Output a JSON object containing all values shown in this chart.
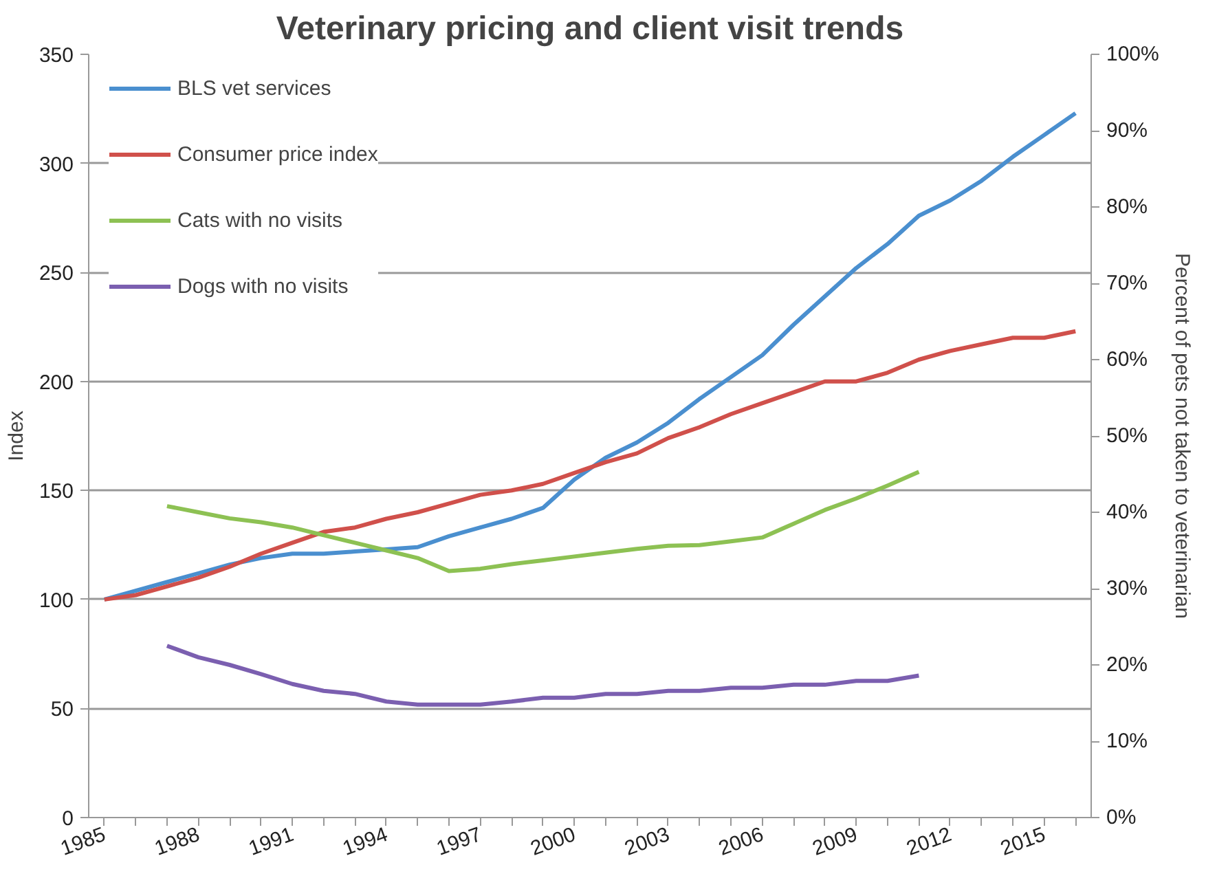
{
  "chart_data": {
    "type": "line",
    "title": "Veterinary pricing and client visit trends",
    "ylabel": "Index",
    "y2label": "Percent of pets not taken to veterinarian",
    "xlim": [
      1984.5,
      2016.5
    ],
    "xticks": [
      {
        "value": 1985,
        "label": "1985"
      },
      {
        "value": 1986,
        "label": null
      },
      {
        "value": 1987,
        "label": null
      },
      {
        "value": 1988,
        "label": "1988"
      },
      {
        "value": 1989,
        "label": null
      },
      {
        "value": 1990,
        "label": null
      },
      {
        "value": 1991,
        "label": "1991"
      },
      {
        "value": 1992,
        "label": null
      },
      {
        "value": 1993,
        "label": null
      },
      {
        "value": 1994,
        "label": "1994"
      },
      {
        "value": 1995,
        "label": null
      },
      {
        "value": 1996,
        "label": null
      },
      {
        "value": 1997,
        "label": "1997"
      },
      {
        "value": 1998,
        "label": null
      },
      {
        "value": 1999,
        "label": null
      },
      {
        "value": 2000,
        "label": "2000"
      },
      {
        "value": 2001,
        "label": null
      },
      {
        "value": 2002,
        "label": null
      },
      {
        "value": 2003,
        "label": "2003"
      },
      {
        "value": 2004,
        "label": null
      },
      {
        "value": 2005,
        "label": null
      },
      {
        "value": 2006,
        "label": "2006"
      },
      {
        "value": 2007,
        "label": null
      },
      {
        "value": 2008,
        "label": null
      },
      {
        "value": 2009,
        "label": "2009"
      },
      {
        "value": 2010,
        "label": null
      },
      {
        "value": 2011,
        "label": null
      },
      {
        "value": 2012,
        "label": "2012"
      },
      {
        "value": 2013,
        "label": null
      },
      {
        "value": 2014,
        "label": null
      },
      {
        "value": 2015,
        "label": "2015"
      },
      {
        "value": 2016,
        "label": null
      }
    ],
    "ylim": [
      0,
      350
    ],
    "yticks": [
      0,
      50,
      100,
      150,
      200,
      250,
      300,
      350
    ],
    "y2lim": [
      0,
      100
    ],
    "y2ticks": [
      {
        "value": 0,
        "label": "0%"
      },
      {
        "value": 10,
        "label": "10%"
      },
      {
        "value": 20,
        "label": "20%"
      },
      {
        "value": 30,
        "label": "30%"
      },
      {
        "value": 40,
        "label": "40%"
      },
      {
        "value": 50,
        "label": "50%"
      },
      {
        "value": 60,
        "label": "60%"
      },
      {
        "value": 70,
        "label": "70%"
      },
      {
        "value": 80,
        "label": "80%"
      },
      {
        "value": 90,
        "label": "90%"
      },
      {
        "value": 100,
        "label": "100%"
      }
    ],
    "grid": "y",
    "legend": "top left",
    "line_style": "solid",
    "series": [
      {
        "name": "BLS vet services",
        "color": "#4a8fcf",
        "x": [
          1985,
          1986,
          1987,
          1988,
          1989,
          1990,
          1991,
          1992,
          1993,
          1994,
          1995,
          1996,
          1997,
          1998,
          1999,
          2000,
          2001,
          2002,
          2003,
          2004,
          2005,
          2006,
          2007,
          2008,
          2009,
          2010,
          2011,
          2012,
          2013,
          2014,
          2015,
          2016
        ],
        "values": [
          100,
          104,
          108,
          112,
          116,
          119,
          121,
          121,
          122,
          123,
          124,
          129,
          133,
          137,
          142,
          155,
          165,
          172,
          181,
          192,
          202,
          212,
          226,
          239,
          252,
          263,
          276,
          283,
          292,
          303,
          313,
          323
        ]
      },
      {
        "name": "Consumer price index",
        "color": "#d0504b",
        "x": [
          1985,
          1986,
          1987,
          1988,
          1989,
          1990,
          1991,
          1992,
          1993,
          1994,
          1995,
          1996,
          1997,
          1998,
          1999,
          2000,
          2001,
          2002,
          2003,
          2004,
          2005,
          2006,
          2007,
          2008,
          2009,
          2010,
          2011,
          2012,
          2013,
          2014,
          2015,
          2016
        ],
        "values": [
          100,
          102,
          106,
          110,
          115,
          121,
          126,
          131,
          133,
          137,
          140,
          144,
          148,
          150,
          153,
          158,
          163,
          167,
          174,
          179,
          185,
          190,
          195,
          200,
          200,
          204,
          210,
          214,
          217,
          220,
          220,
          223
        ]
      },
      {
        "name": "Cats with no visits",
        "color": "#8dc153",
        "axis": "y2",
        "x": [
          1987,
          1988,
          1989,
          1990,
          1991,
          1992,
          1993,
          1994,
          1995,
          1996,
          1997,
          1998,
          1999,
          2000,
          2001,
          2002,
          2003,
          2004,
          2005,
          2006,
          2007,
          2008,
          2009,
          2010,
          2011
        ],
        "values": [
          40.8,
          40,
          39.2,
          38.7,
          38,
          37,
          36,
          35,
          34,
          32.3,
          32.6,
          33.2,
          33.7,
          34.2,
          34.7,
          35.2,
          35.6,
          35.7,
          36.2,
          36.7,
          38.5,
          40.3,
          41.8,
          43.5,
          45.3
        ]
      },
      {
        "name": "Dogs with no visits",
        "color": "#7b5fb0",
        "axis": "y2",
        "x": [
          1987,
          1988,
          1989,
          1990,
          1991,
          1992,
          1993,
          1994,
          1995,
          1996,
          1997,
          1998,
          1999,
          2000,
          2001,
          2002,
          2003,
          2004,
          2005,
          2006,
          2007,
          2008,
          2009,
          2010,
          2011
        ],
        "values": [
          22.5,
          21,
          20,
          18.8,
          17.5,
          16.6,
          16.2,
          15.2,
          14.8,
          14.8,
          14.8,
          15.2,
          15.7,
          15.7,
          16.2,
          16.2,
          16.6,
          16.6,
          17.0,
          17.0,
          17.4,
          17.4,
          17.9,
          17.9,
          18.6
        ]
      }
    ]
  }
}
